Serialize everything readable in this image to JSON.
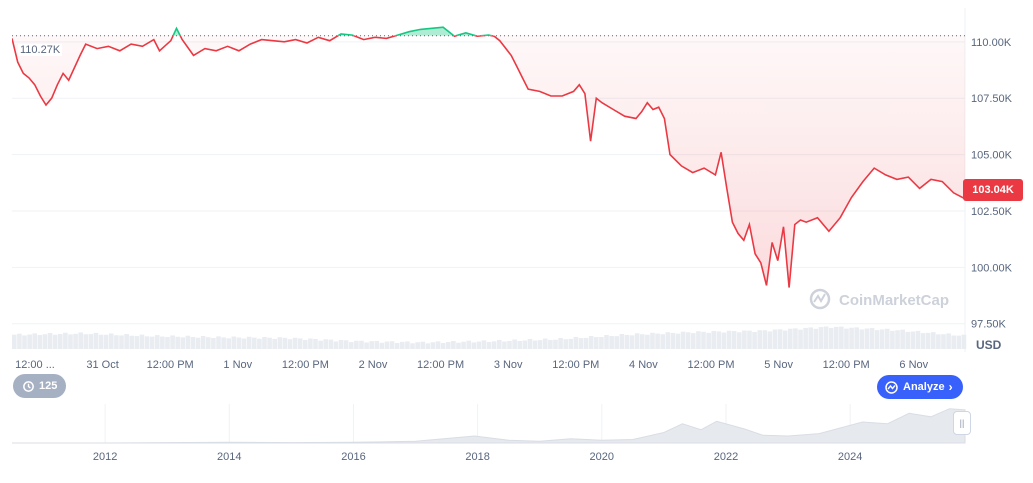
{
  "chart_data": {
    "type": "line",
    "currency_label": "USD",
    "reference_value_label": "110.27K",
    "reference_value": 110270,
    "current_value_label": "103.04K",
    "current_value": 103040,
    "y_ticks": [
      "110.00K",
      "107.50K",
      "105.00K",
      "102.50K",
      "100.00K",
      "97.50K"
    ],
    "y_tick_values": [
      110000,
      107500,
      105000,
      102500,
      100000,
      97500
    ],
    "y_range": [
      97000,
      111500
    ],
    "x_ticks": [
      "12:00 ...",
      "31 Oct",
      "12:00 PM",
      "1 Nov",
      "12:00 PM",
      "2 Nov",
      "12:00 PM",
      "3 Nov",
      "12:00 PM",
      "4 Nov",
      "12:00 PM",
      "5 Nov",
      "12:00 PM",
      "6 Nov"
    ],
    "x_range_hours": [
      0,
      168
    ],
    "series": [
      {
        "points": [
          [
            0,
            110150
          ],
          [
            1,
            109100
          ],
          [
            2,
            108600
          ],
          [
            3,
            108400
          ],
          [
            4,
            108100
          ],
          [
            5,
            107600
          ],
          [
            6,
            107200
          ],
          [
            7,
            107500
          ],
          [
            8,
            108100
          ],
          [
            9,
            108600
          ],
          [
            10,
            108300
          ],
          [
            12,
            109400
          ],
          [
            13,
            109900
          ],
          [
            15,
            109700
          ],
          [
            17,
            109800
          ],
          [
            19,
            109600
          ],
          [
            21,
            109900
          ],
          [
            23,
            109800
          ],
          [
            25,
            110100
          ],
          [
            26,
            109600
          ],
          [
            28,
            110050
          ],
          [
            29,
            110600
          ],
          [
            30,
            110100
          ],
          [
            32,
            109400
          ],
          [
            34,
            109700
          ],
          [
            36,
            109600
          ],
          [
            38,
            109800
          ],
          [
            40,
            109600
          ],
          [
            42,
            109900
          ],
          [
            44,
            110100
          ],
          [
            46,
            110050
          ],
          [
            48,
            110000
          ],
          [
            50,
            110100
          ],
          [
            52,
            109950
          ],
          [
            54,
            110200
          ],
          [
            56,
            110050
          ],
          [
            58,
            110350
          ],
          [
            60,
            110300
          ],
          [
            62,
            110100
          ],
          [
            64,
            110200
          ],
          [
            66,
            110150
          ],
          [
            68,
            110300
          ],
          [
            70,
            110450
          ],
          [
            72,
            110550
          ],
          [
            74,
            110600
          ],
          [
            76,
            110650
          ],
          [
            78,
            110250
          ],
          [
            80,
            110400
          ],
          [
            82,
            110250
          ],
          [
            84,
            110300
          ],
          [
            85,
            110250
          ],
          [
            86,
            110050
          ],
          [
            88,
            109400
          ],
          [
            89,
            108900
          ],
          [
            90,
            108400
          ],
          [
            91,
            107900
          ],
          [
            93,
            107800
          ],
          [
            95,
            107600
          ],
          [
            97,
            107600
          ],
          [
            99,
            107800
          ],
          [
            100,
            108100
          ],
          [
            101,
            107700
          ],
          [
            102,
            105600
          ],
          [
            103,
            107500
          ],
          [
            104,
            107300
          ],
          [
            106,
            107000
          ],
          [
            108,
            106700
          ],
          [
            110,
            106600
          ],
          [
            111,
            106900
          ],
          [
            112,
            107300
          ],
          [
            113,
            107000
          ],
          [
            114,
            107100
          ],
          [
            115,
            106600
          ],
          [
            116,
            105000
          ],
          [
            118,
            104500
          ],
          [
            120,
            104200
          ],
          [
            122,
            104400
          ],
          [
            124,
            104100
          ],
          [
            125,
            105100
          ],
          [
            126,
            103500
          ],
          [
            127,
            102000
          ],
          [
            128,
            101500
          ],
          [
            129,
            101200
          ],
          [
            130,
            101900
          ],
          [
            131,
            100600
          ],
          [
            132,
            100200
          ],
          [
            133,
            99200
          ],
          [
            134,
            101100
          ],
          [
            135,
            100300
          ],
          [
            136,
            101800
          ],
          [
            137,
            99100
          ],
          [
            138,
            101900
          ],
          [
            139,
            102100
          ],
          [
            140,
            102000
          ],
          [
            142,
            102200
          ],
          [
            144,
            101600
          ],
          [
            146,
            102200
          ],
          [
            148,
            103100
          ],
          [
            150,
            103800
          ],
          [
            152,
            104400
          ],
          [
            154,
            104100
          ],
          [
            156,
            103900
          ],
          [
            158,
            104000
          ],
          [
            160,
            103500
          ],
          [
            162,
            103900
          ],
          [
            164,
            103800
          ],
          [
            166,
            103300
          ],
          [
            168,
            103040
          ]
        ],
        "up_color": "#16c784",
        "down_color": "#ea3943"
      }
    ],
    "volume_range_hours": [
      0,
      168
    ],
    "volume": [
      [
        0,
        0.55
      ],
      [
        12,
        0.6
      ],
      [
        24,
        0.5
      ],
      [
        36,
        0.45
      ],
      [
        48,
        0.42
      ],
      [
        60,
        0.3
      ],
      [
        72,
        0.25
      ],
      [
        84,
        0.3
      ],
      [
        96,
        0.38
      ],
      [
        108,
        0.55
      ],
      [
        120,
        0.65
      ],
      [
        132,
        0.7
      ],
      [
        144,
        0.85
      ],
      [
        156,
        0.72
      ],
      [
        168,
        0.5
      ]
    ],
    "mini_chart": {
      "x_ticks": [
        "2012",
        "2014",
        "2016",
        "2018",
        "2020",
        "2022",
        "2024"
      ],
      "x_tick_years": [
        2012,
        2014,
        2016,
        2018,
        2020,
        2022,
        2024
      ],
      "year_range": [
        2010.5,
        2025.85
      ],
      "series": [
        [
          2010.5,
          0
        ],
        [
          2012,
          0
        ],
        [
          2013,
          0.01
        ],
        [
          2014,
          0.02
        ],
        [
          2015,
          0.01
        ],
        [
          2016,
          0.02
        ],
        [
          2017,
          0.05
        ],
        [
          2017.95,
          0.2
        ],
        [
          2018.5,
          0.08
        ],
        [
          2019,
          0.05
        ],
        [
          2019.5,
          0.12
        ],
        [
          2020,
          0.08
        ],
        [
          2020.5,
          0.1
        ],
        [
          2021,
          0.3
        ],
        [
          2021.3,
          0.55
        ],
        [
          2021.6,
          0.38
        ],
        [
          2021.85,
          0.62
        ],
        [
          2022.3,
          0.4
        ],
        [
          2022.6,
          0.22
        ],
        [
          2023,
          0.2
        ],
        [
          2023.5,
          0.27
        ],
        [
          2024.2,
          0.6
        ],
        [
          2024.6,
          0.55
        ],
        [
          2024.95,
          0.85
        ],
        [
          2025.3,
          0.75
        ],
        [
          2025.6,
          0.98
        ],
        [
          2025.85,
          0.95
        ]
      ]
    }
  },
  "ui": {
    "brand": "CoinMarketCap",
    "history_badge": "125",
    "analyze_label": "Analyze",
    "colors": {
      "red": "#ea3943",
      "green": "#16c784",
      "blue": "#3861fb",
      "badge_gray": "#a6b0c3"
    }
  }
}
